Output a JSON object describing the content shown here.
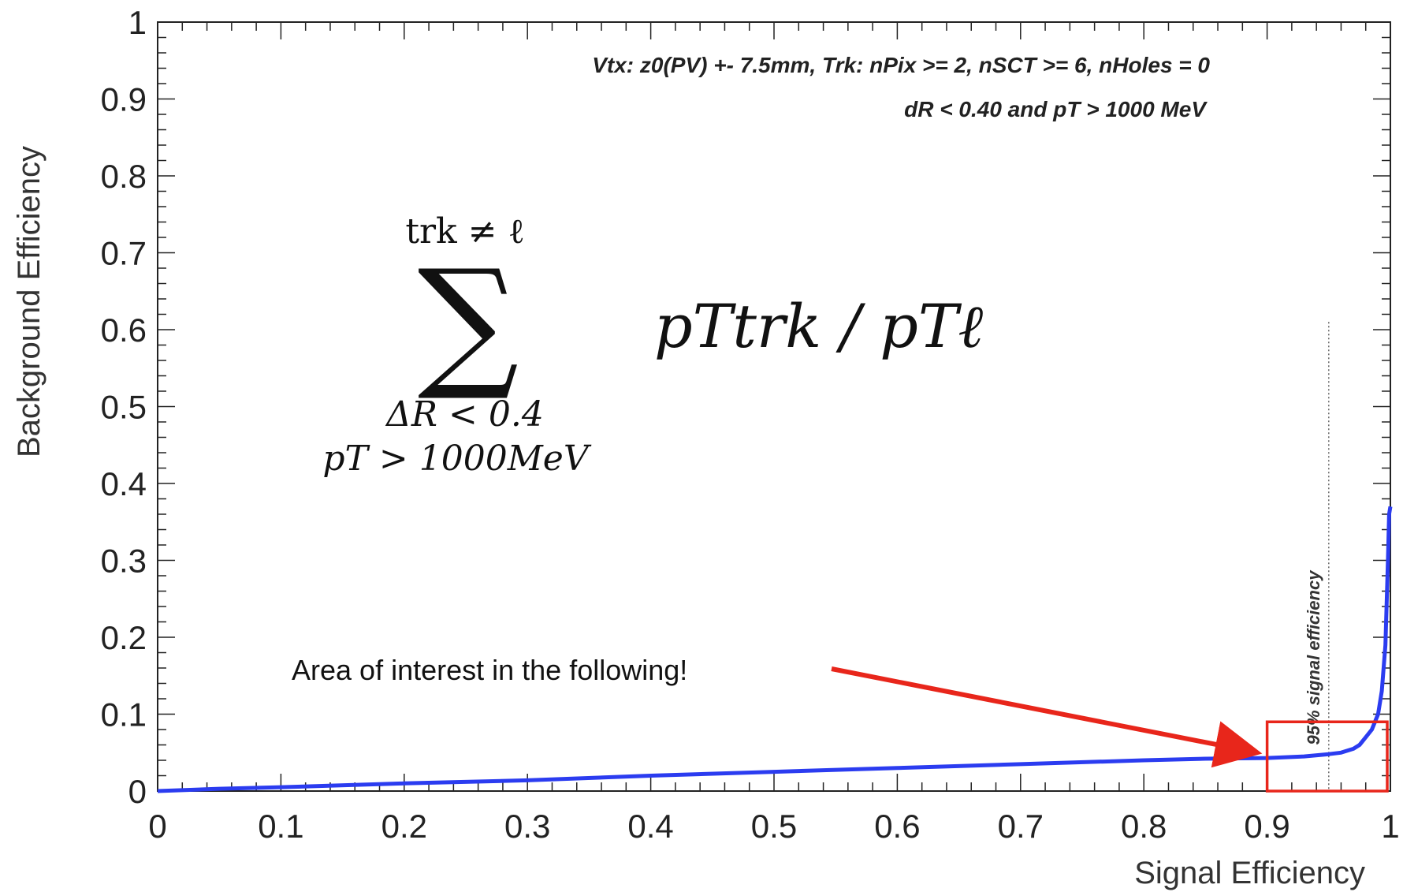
{
  "chart_data": {
    "type": "line",
    "xlabel": "Signal Efficiency",
    "ylabel": "Background Efficiency",
    "xlim": [
      0,
      1
    ],
    "ylim": [
      0,
      1
    ],
    "x_ticks": [
      "0",
      "0.1",
      "0.2",
      "0.3",
      "0.4",
      "0.5",
      "0.6",
      "0.7",
      "0.8",
      "0.9",
      "1"
    ],
    "y_ticks": [
      "0",
      "0.1",
      "0.2",
      "0.3",
      "0.4",
      "0.5",
      "0.6",
      "0.7",
      "0.8",
      "0.9",
      "1"
    ],
    "grid": false,
    "series": [
      {
        "color": "#2b3cf0",
        "x": [
          0.0,
          0.05,
          0.1,
          0.2,
          0.3,
          0.4,
          0.5,
          0.6,
          0.7,
          0.8,
          0.85,
          0.9,
          0.93,
          0.95,
          0.96,
          0.97,
          0.975,
          0.98,
          0.985,
          0.99,
          0.993,
          0.996,
          0.998,
          0.999,
          1.0
        ],
        "y": [
          0.0,
          0.003,
          0.005,
          0.01,
          0.014,
          0.02,
          0.025,
          0.03,
          0.035,
          0.04,
          0.042,
          0.043,
          0.045,
          0.048,
          0.05,
          0.055,
          0.06,
          0.07,
          0.08,
          0.1,
          0.13,
          0.19,
          0.3,
          0.36,
          0.37
        ]
      }
    ],
    "annotations": {
      "cuts_line1": "Vtx: z0(PV) +- 7.5mm, Trk: nPix >= 2, nSCT >= 6, nHoles = 0",
      "cuts_line2": "dR < 0.40 and pT > 1000 MeV",
      "formula_top": "trk ≠ ℓ",
      "formula_sum": "∑",
      "formula_bottom1": "ΔR  <  0.4",
      "formula_bottom2": "pT > 1000MeV",
      "formula_term": "pTtrk / pTℓ",
      "vline_x": 0.95,
      "vline_label": "95% signal efficiency",
      "highlight_x": [
        0.9,
        1.0
      ],
      "highlight_y": [
        0.0,
        0.09
      ],
      "callout": "Area of interest in the following!",
      "callout_color": "#e8261b"
    }
  }
}
